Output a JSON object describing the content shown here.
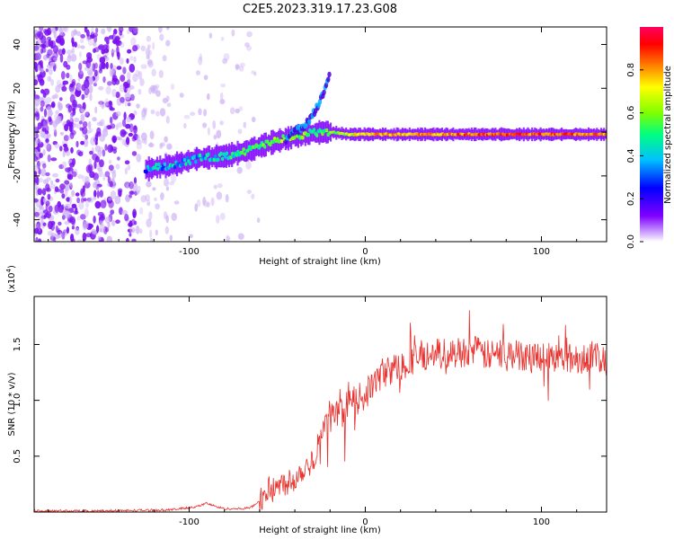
{
  "chart_data": [
    {
      "type": "heatmap",
      "title": "C2E5.2023.319.17.23.G08",
      "xlabel": "Height of straight line (km)",
      "ylabel": "Frequency (Hz)",
      "xlim": [
        -188,
        137
      ],
      "ylim": [
        -50,
        48
      ],
      "x_ticks": [
        -100,
        0,
        100
      ],
      "y_ticks": [
        -40,
        -20,
        0,
        20,
        40
      ],
      "colorbar": {
        "label": "Normalized spectral amplitude",
        "range": [
          0.0,
          1.0
        ],
        "ticks": [
          "0.0",
          "0.2",
          "0.4",
          "0.6",
          "0.8"
        ],
        "colormap": [
          "#ffffff",
          "#7f00ff",
          "#0000ff",
          "#00c0ff",
          "#00ff80",
          "#80ff00",
          "#ffff00",
          "#ff8000",
          "#ff0000",
          "#ff0060"
        ]
      },
      "ridge": {
        "x": [
          -125,
          -110,
          -95,
          -80,
          -65,
          -55,
          -45,
          -35,
          -25,
          -20,
          -10,
          0,
          20,
          40,
          60,
          80,
          100,
          120,
          137
        ],
        "frequency": [
          -17,
          -15,
          -12,
          -11,
          -8,
          -5,
          -3,
          -1,
          0,
          0,
          -1,
          -1,
          -1,
          -1,
          -1,
          -1,
          -1,
          -1,
          -1
        ],
        "amplitude": [
          0.3,
          0.35,
          0.35,
          0.4,
          0.45,
          0.5,
          0.55,
          0.5,
          0.45,
          0.5,
          0.6,
          0.7,
          0.75,
          0.75,
          0.8,
          0.85,
          0.8,
          0.8,
          0.75
        ]
      },
      "branch": {
        "x": [
          -45,
          -35,
          -30,
          -25,
          -20
        ],
        "frequency": [
          -3,
          3,
          8,
          15,
          27
        ]
      },
      "noise_region": [
        -188,
        -85
      ]
    },
    {
      "type": "line",
      "title": "",
      "xlabel": "Height of straight line (km)",
      "ylabel": "SNR (10 * v/v)",
      "yscale_label": "(x10",
      "yscale_exp": "4",
      "xlim": [
        -188,
        137
      ],
      "ylim": [
        0,
        1.93
      ],
      "x_ticks": [
        -100,
        0,
        100
      ],
      "y_ticks": [
        0.5,
        1.0,
        1.5
      ],
      "y_tick_labels": [
        "0.5",
        "1.0",
        "1.5"
      ],
      "color": "#e8302c",
      "series": [
        {
          "x": [
            -188,
            -150,
            -110,
            -95,
            -90,
            -85,
            -80,
            -70,
            -65,
            -60,
            -55,
            -50,
            -45,
            -40,
            -35,
            -30,
            -27,
            -25,
            -22,
            -20,
            -15,
            -10,
            -5,
            0,
            10,
            20,
            30,
            40,
            50,
            60,
            70,
            80,
            90,
            100,
            110,
            120,
            130,
            137
          ],
          "values": [
            0.01,
            0.01,
            0.02,
            0.05,
            0.08,
            0.05,
            0.03,
            0.03,
            0.04,
            0.1,
            0.2,
            0.22,
            0.27,
            0.3,
            0.4,
            0.45,
            0.6,
            0.7,
            0.8,
            0.9,
            0.85,
            0.95,
            1.0,
            1.05,
            1.25,
            1.3,
            1.4,
            1.42,
            1.42,
            1.45,
            1.4,
            1.42,
            1.4,
            1.4,
            1.38,
            1.37,
            1.4,
            1.35
          ]
        }
      ]
    }
  ]
}
